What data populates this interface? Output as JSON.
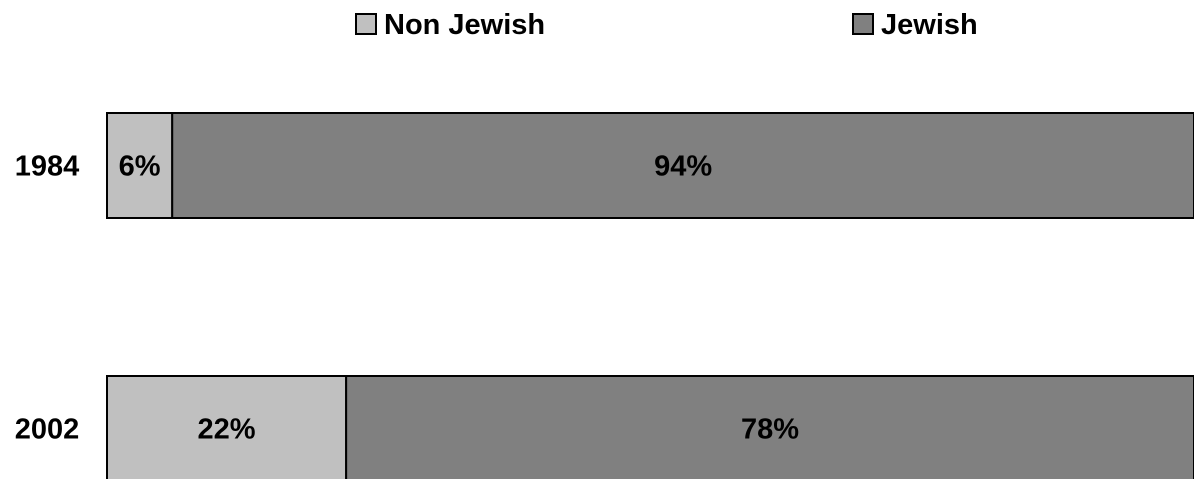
{
  "chart_data": {
    "type": "bar",
    "orientation": "horizontal",
    "stacked": "percent",
    "categories": [
      "1984",
      "2002"
    ],
    "series": [
      {
        "name": "Non Jewish",
        "color": "#c0c0c0",
        "values": [
          6,
          22
        ],
        "labels": [
          "6%",
          "22%"
        ]
      },
      {
        "name": "Jewish",
        "color": "#808080",
        "values": [
          94,
          78
        ],
        "labels": [
          "94%",
          "78%"
        ]
      }
    ],
    "title": "",
    "xlabel": "",
    "ylabel": "",
    "xlim": [
      0,
      100
    ],
    "grid": false,
    "legend": "top"
  }
}
